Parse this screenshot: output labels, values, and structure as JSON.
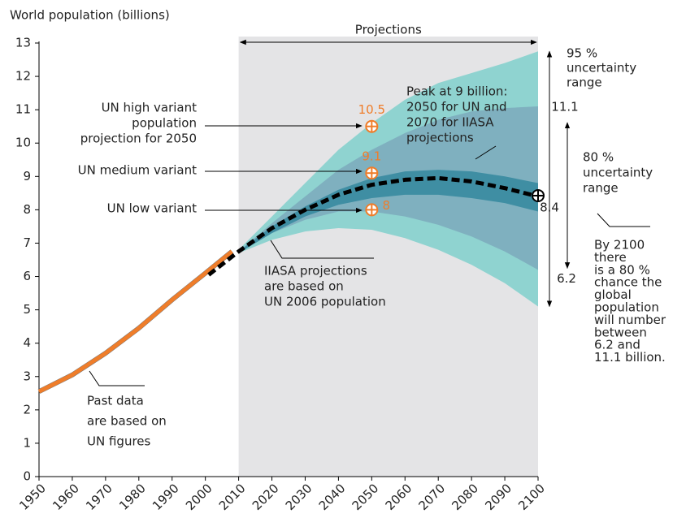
{
  "chart_data": {
    "type": "line",
    "title": "World population (billions)",
    "xlim": [
      1950,
      2100
    ],
    "ylim": [
      0,
      13
    ],
    "xticks": [
      1950,
      1960,
      1970,
      1980,
      1990,
      2000,
      2010,
      2020,
      2030,
      2040,
      2050,
      2060,
      2070,
      2080,
      2090,
      2100
    ],
    "yticks": [
      0,
      1,
      2,
      3,
      4,
      5,
      6,
      7,
      8,
      9,
      10,
      11,
      12,
      13
    ],
    "projection_range": [
      2010,
      2100
    ],
    "projection_label": "Projections",
    "projection_color": "#e4e4e6",
    "bands": [
      {
        "color": "#8fd3d0",
        "x": [
          2010,
          2020,
          2030,
          2040,
          2050,
          2060,
          2070,
          2080,
          2090,
          2100
        ],
        "lower": [
          6.7,
          7.1,
          7.35,
          7.45,
          7.4,
          7.15,
          6.8,
          6.35,
          5.8,
          5.1
        ],
        "upper": [
          6.8,
          7.8,
          8.8,
          9.8,
          10.6,
          11.3,
          11.8,
          12.1,
          12.4,
          12.75
        ]
      },
      {
        "color": "#7fb0bf",
        "x": [
          2010,
          2020,
          2030,
          2040,
          2050,
          2060,
          2070,
          2080,
          2090,
          2100
        ],
        "lower": [
          6.7,
          7.3,
          7.7,
          7.95,
          7.95,
          7.8,
          7.55,
          7.2,
          6.75,
          6.2
        ],
        "upper": [
          6.75,
          7.6,
          8.4,
          9.2,
          9.8,
          10.3,
          10.7,
          10.95,
          11.05,
          11.1
        ]
      },
      {
        "color": "#3f8ea3",
        "x": [
          2010,
          2020,
          2030,
          2040,
          2050,
          2060,
          2070,
          2080,
          2090,
          2100
        ],
        "lower": [
          6.7,
          7.3,
          7.8,
          8.15,
          8.35,
          8.45,
          8.45,
          8.35,
          8.2,
          7.95
        ],
        "upper": [
          6.75,
          7.5,
          8.1,
          8.6,
          8.95,
          9.15,
          9.2,
          9.15,
          9.0,
          8.8
        ]
      }
    ],
    "series": [
      {
        "color": "#ef7d2a",
        "dashed": false,
        "x": [
          1950,
          1960,
          1970,
          1980,
          1990,
          2000,
          2008
        ],
        "values": [
          2.55,
          3.05,
          3.7,
          4.45,
          5.3,
          6.1,
          6.75
        ]
      },
      {
        "color": "#000000",
        "dashed": true,
        "x": [
          2001,
          2010,
          2020,
          2030,
          2040,
          2050,
          2060,
          2070,
          2080,
          2090,
          2100
        ],
        "values": [
          6.05,
          6.75,
          7.45,
          8.0,
          8.45,
          8.75,
          8.9,
          8.95,
          8.85,
          8.65,
          8.4
        ]
      }
    ],
    "points": [
      {
        "x": 2050,
        "value": 10.5,
        "color": "#ef7d2a"
      },
      {
        "x": 2050,
        "value": 9.1,
        "color": "#ef7d2a"
      },
      {
        "x": 2050,
        "value": 8,
        "color": "#ef7d2a"
      }
    ],
    "annotations": {
      "un_high": [
        "UN high variant",
        "population",
        "projection for 2050"
      ],
      "un_medium": [
        "UN medium variant"
      ],
      "un_low": [
        "UN low variant"
      ],
      "peak": [
        "Peak at 9 billion:",
        "2050 for UN and",
        "2070 for IIASA",
        "projections"
      ],
      "iiasa": [
        "IIASA projections",
        "are based on",
        "UN 2006 population"
      ],
      "past": [
        "Past data",
        "are based on",
        "UN figures"
      ],
      "range95": [
        "95 %",
        "uncertainty",
        "range"
      ],
      "range80": [
        "80 %",
        "uncertainty",
        "range"
      ],
      "note": [
        "By 2100",
        "there",
        "is a 80 %",
        "chance the",
        "global",
        "population",
        "will number",
        "between",
        "6.2 and",
        "11.1 billion."
      ]
    }
  }
}
